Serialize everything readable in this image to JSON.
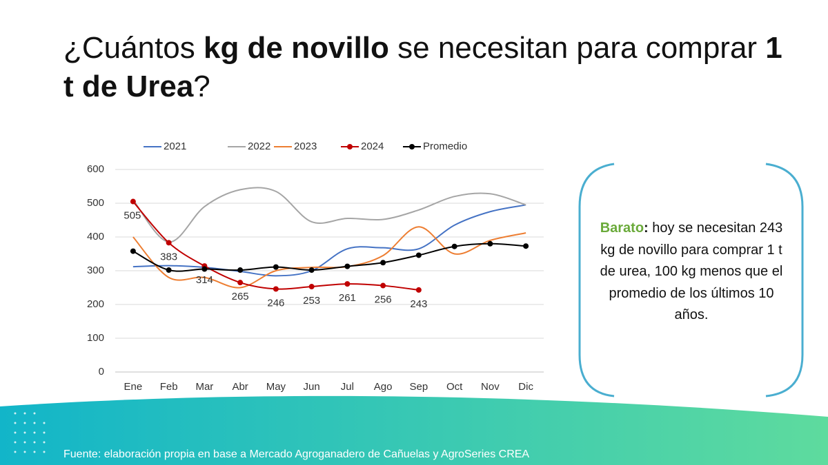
{
  "slide": {
    "title_parts": [
      "¿Cuántos ",
      "kg de novillo",
      " se necesitan para comprar ",
      "1 t de Urea",
      "?"
    ]
  },
  "callout": {
    "parts": [
      "Barato",
      ":",
      " hoy se necesitan 243 kg de novillo para comprar 1 t de urea, 100 kg menos que el promedio de los últimos 10 años."
    ]
  },
  "source": "Fuente: elaboración propia en base a Mercado Agroganadero de Cañuelas y AgroSeries CREA",
  "chart_data": {
    "type": "line",
    "categories": [
      "Ene",
      "Feb",
      "Mar",
      "Abr",
      "May",
      "Jun",
      "Jul",
      "Ago",
      "Sep",
      "Oct",
      "Nov",
      "Dic"
    ],
    "series": [
      {
        "name": "2021",
        "color": "#4472c4",
        "markers": false,
        "values": [
          312,
          315,
          310,
          298,
          285,
          300,
          365,
          368,
          365,
          435,
          475,
          495
        ]
      },
      {
        "name": "2022",
        "color": "#a5a5a5",
        "markers": false,
        "values": [
          510,
          385,
          490,
          540,
          535,
          445,
          455,
          452,
          480,
          520,
          528,
          495
        ]
      },
      {
        "name": "2023",
        "color": "#ed7d31",
        "markers": false,
        "values": [
          400,
          280,
          280,
          250,
          300,
          310,
          312,
          345,
          430,
          350,
          390,
          412
        ]
      },
      {
        "name": "2024",
        "color": "#c00000",
        "markers": true,
        "data_labels": true,
        "values": [
          505,
          383,
          314,
          265,
          246,
          253,
          261,
          256,
          243,
          null,
          null,
          null
        ]
      },
      {
        "name": "Promedio",
        "color": "#000000",
        "markers": true,
        "values": [
          358,
          302,
          305,
          302,
          311,
          302,
          313,
          324,
          346,
          372,
          380,
          373
        ]
      }
    ],
    "ylim": [
      0,
      600
    ],
    "yticks": [
      0,
      100,
      200,
      300,
      400,
      500,
      600
    ],
    "grid": true,
    "legend": "top",
    "smooth": true
  }
}
